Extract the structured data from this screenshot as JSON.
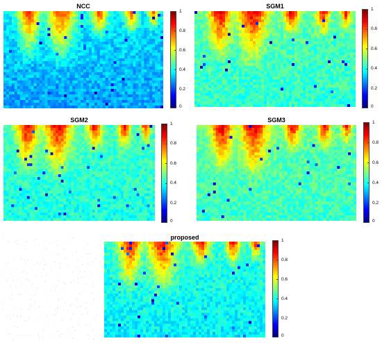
{
  "colormap": {
    "name": "jet",
    "stops": [
      "#00007f",
      "#0000ff",
      "#007fff",
      "#00ffff",
      "#7fff7f",
      "#ffff00",
      "#ff7f00",
      "#ff0000",
      "#7f0000"
    ]
  },
  "chart_data": [
    {
      "type": "heatmap",
      "title": "NCC",
      "colorbar": {
        "min": 0,
        "max": 1,
        "tick_labels": [
          "0",
          "0.2",
          "0.4",
          "0.6",
          "0.8",
          "1"
        ]
      },
      "profile": {
        "top_peak": 0.82,
        "base": 0.36,
        "bottom": 0.28
      }
    },
    {
      "type": "heatmap",
      "title": "SGM1",
      "colorbar": {
        "min": 0,
        "max": 1,
        "tick_labels": [
          "0",
          "0.2",
          "0.4",
          "0.6",
          "0.8",
          "1"
        ]
      },
      "profile": {
        "top_peak": 0.9,
        "base": 0.46,
        "bottom": 0.42
      }
    },
    {
      "type": "heatmap",
      "title": "SGM2",
      "colorbar": {
        "min": 0,
        "max": 1,
        "tick_labels": [
          "0",
          "0.2",
          "0.4",
          "0.6",
          "0.8",
          "1"
        ]
      },
      "profile": {
        "top_peak": 0.9,
        "base": 0.44,
        "bottom": 0.4
      }
    },
    {
      "type": "heatmap",
      "title": "SGM3",
      "colorbar": {
        "min": 0,
        "max": 1,
        "tick_labels": [
          "0",
          "0.2",
          "0.4",
          "0.6",
          "0.8",
          "1"
        ]
      },
      "profile": {
        "top_peak": 0.9,
        "base": 0.47,
        "bottom": 0.43
      }
    },
    {
      "type": "heatmap",
      "title": "proposed",
      "colorbar": {
        "min": 0,
        "max": 1,
        "tick_labels": [
          "0",
          "0.2",
          "0.4",
          "0.6",
          "0.8",
          "1"
        ]
      },
      "profile": {
        "top_peak": 0.88,
        "base": 0.42,
        "bottom": 0.36
      }
    }
  ]
}
